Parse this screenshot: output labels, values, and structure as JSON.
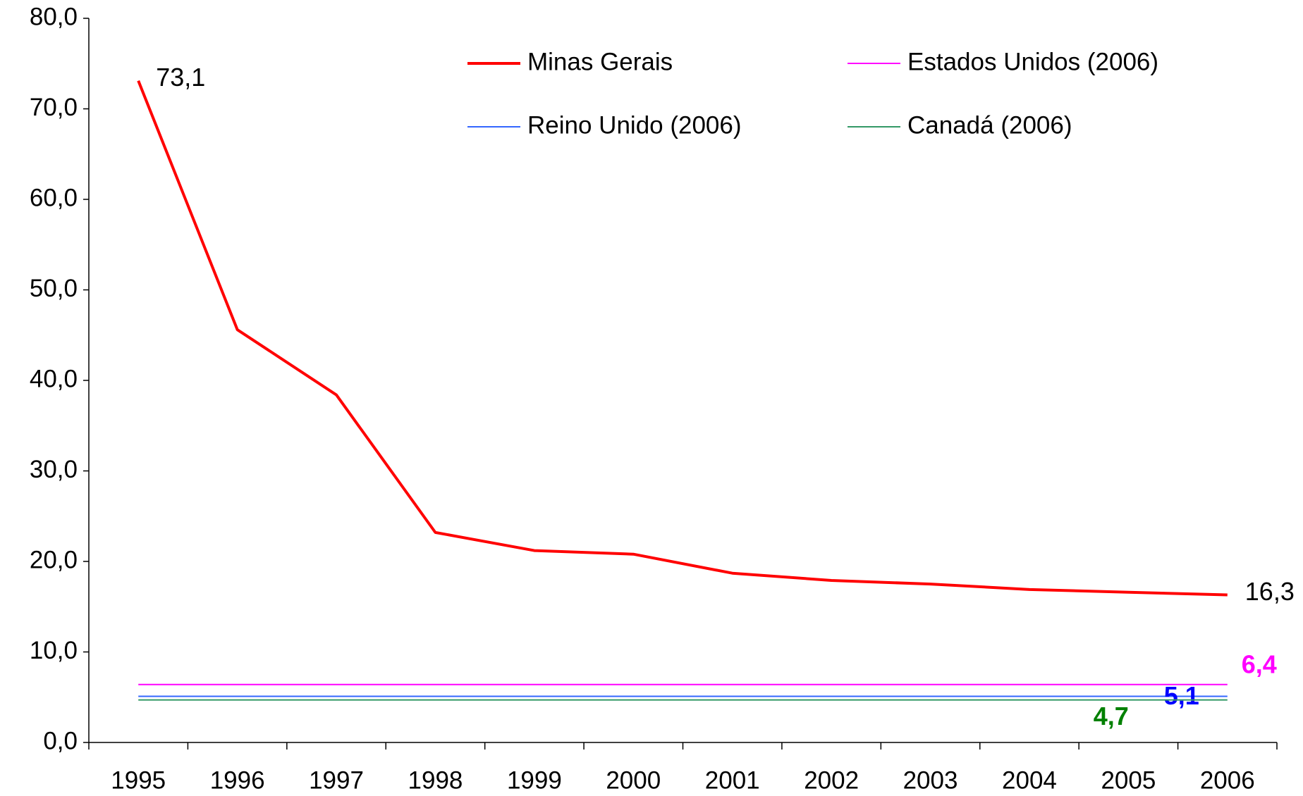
{
  "chart_data": {
    "type": "line",
    "categories": [
      "1995",
      "1996",
      "1997",
      "1998",
      "1999",
      "2000",
      "2001",
      "2002",
      "2003",
      "2004",
      "2005",
      "2006"
    ],
    "series": [
      {
        "name": "Minas Gerais",
        "color": "#ff0000",
        "values": [
          73.1,
          45.6,
          38.4,
          23.2,
          21.2,
          20.8,
          18.7,
          17.9,
          17.5,
          16.9,
          16.6,
          16.3
        ],
        "value_labels": [
          "73,1",
          null,
          null,
          null,
          null,
          null,
          null,
          null,
          null,
          null,
          null,
          "16,3"
        ]
      },
      {
        "name": "Estados Unidos (2006)",
        "color": "#ff00ff",
        "values": [
          6.4,
          6.4,
          6.4,
          6.4,
          6.4,
          6.4,
          6.4,
          6.4,
          6.4,
          6.4,
          6.4,
          6.4
        ],
        "value_labels": [
          null,
          null,
          null,
          null,
          null,
          null,
          null,
          null,
          null,
          null,
          null,
          "6,4"
        ]
      },
      {
        "name": "Reino Unido (2006)",
        "color": "#3366ff",
        "values": [
          5.1,
          5.1,
          5.1,
          5.1,
          5.1,
          5.1,
          5.1,
          5.1,
          5.1,
          5.1,
          5.1,
          5.1
        ],
        "value_labels": [
          null,
          null,
          null,
          null,
          null,
          null,
          null,
          null,
          null,
          null,
          null,
          "5,1"
        ]
      },
      {
        "name": "Canadá (2006)",
        "color": "#339966",
        "values": [
          4.7,
          4.7,
          4.7,
          4.7,
          4.7,
          4.7,
          4.7,
          4.7,
          4.7,
          4.7,
          4.7,
          4.7
        ],
        "value_labels": [
          null,
          null,
          null,
          null,
          null,
          null,
          null,
          null,
          null,
          null,
          null,
          "4,7"
        ]
      }
    ],
    "ylim": [
      0,
      80
    ],
    "yticks": [
      {
        "value": 0,
        "label": "0,0"
      },
      {
        "value": 10,
        "label": "10,0"
      },
      {
        "value": 20,
        "label": "20,0"
      },
      {
        "value": 30,
        "label": "30,0"
      },
      {
        "value": 40,
        "label": "40,0"
      },
      {
        "value": 50,
        "label": "50,0"
      },
      {
        "value": 60,
        "label": "60,0"
      },
      {
        "value": 70,
        "label": "70,0"
      },
      {
        "value": 80,
        "label": "80,0"
      }
    ],
    "grid": false
  }
}
